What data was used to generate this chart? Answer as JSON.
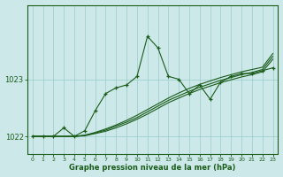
{
  "xlabel": "Graphe pression niveau de la mer (hPa)",
  "background_color": "#cce8e8",
  "grid_color": "#99cccc",
  "line_color": "#1a5c1a",
  "ylim": [
    1021.7,
    1024.3
  ],
  "yticks": [
    1022,
    1023
  ],
  "xlim": [
    -0.5,
    23.5
  ],
  "x_ticks": [
    0,
    1,
    2,
    3,
    4,
    5,
    6,
    7,
    8,
    9,
    10,
    11,
    12,
    13,
    14,
    15,
    16,
    17,
    18,
    19,
    20,
    21,
    22,
    23
  ],
  "wavy": [
    1022.0,
    1022.0,
    1022.0,
    1022.15,
    1022.0,
    1022.1,
    1022.45,
    1022.75,
    1022.85,
    1022.9,
    1023.05,
    1023.75,
    1023.55,
    1023.05,
    1023.0,
    1022.75,
    1022.9,
    1022.65,
    1022.95,
    1023.05,
    1023.1,
    1023.1,
    1023.15,
    1023.2
  ],
  "lin1": [
    1022.0,
    1022.0,
    1022.0,
    1022.0,
    1022.0,
    1022.02,
    1022.07,
    1022.13,
    1022.2,
    1022.28,
    1022.37,
    1022.47,
    1022.57,
    1022.67,
    1022.76,
    1022.84,
    1022.91,
    1022.97,
    1023.03,
    1023.08,
    1023.13,
    1023.17,
    1023.21,
    1023.45
  ],
  "lin2": [
    1022.0,
    1022.0,
    1022.0,
    1022.0,
    1022.0,
    1022.02,
    1022.06,
    1022.11,
    1022.18,
    1022.25,
    1022.33,
    1022.43,
    1022.53,
    1022.63,
    1022.71,
    1022.79,
    1022.86,
    1022.92,
    1022.98,
    1023.03,
    1023.08,
    1023.12,
    1023.17,
    1023.4
  ],
  "lin3": [
    1022.0,
    1022.0,
    1022.0,
    1022.0,
    1022.0,
    1022.01,
    1022.05,
    1022.09,
    1022.15,
    1022.22,
    1022.3,
    1022.39,
    1022.49,
    1022.59,
    1022.67,
    1022.75,
    1022.82,
    1022.88,
    1022.94,
    1022.99,
    1023.04,
    1023.08,
    1023.13,
    1023.35
  ]
}
